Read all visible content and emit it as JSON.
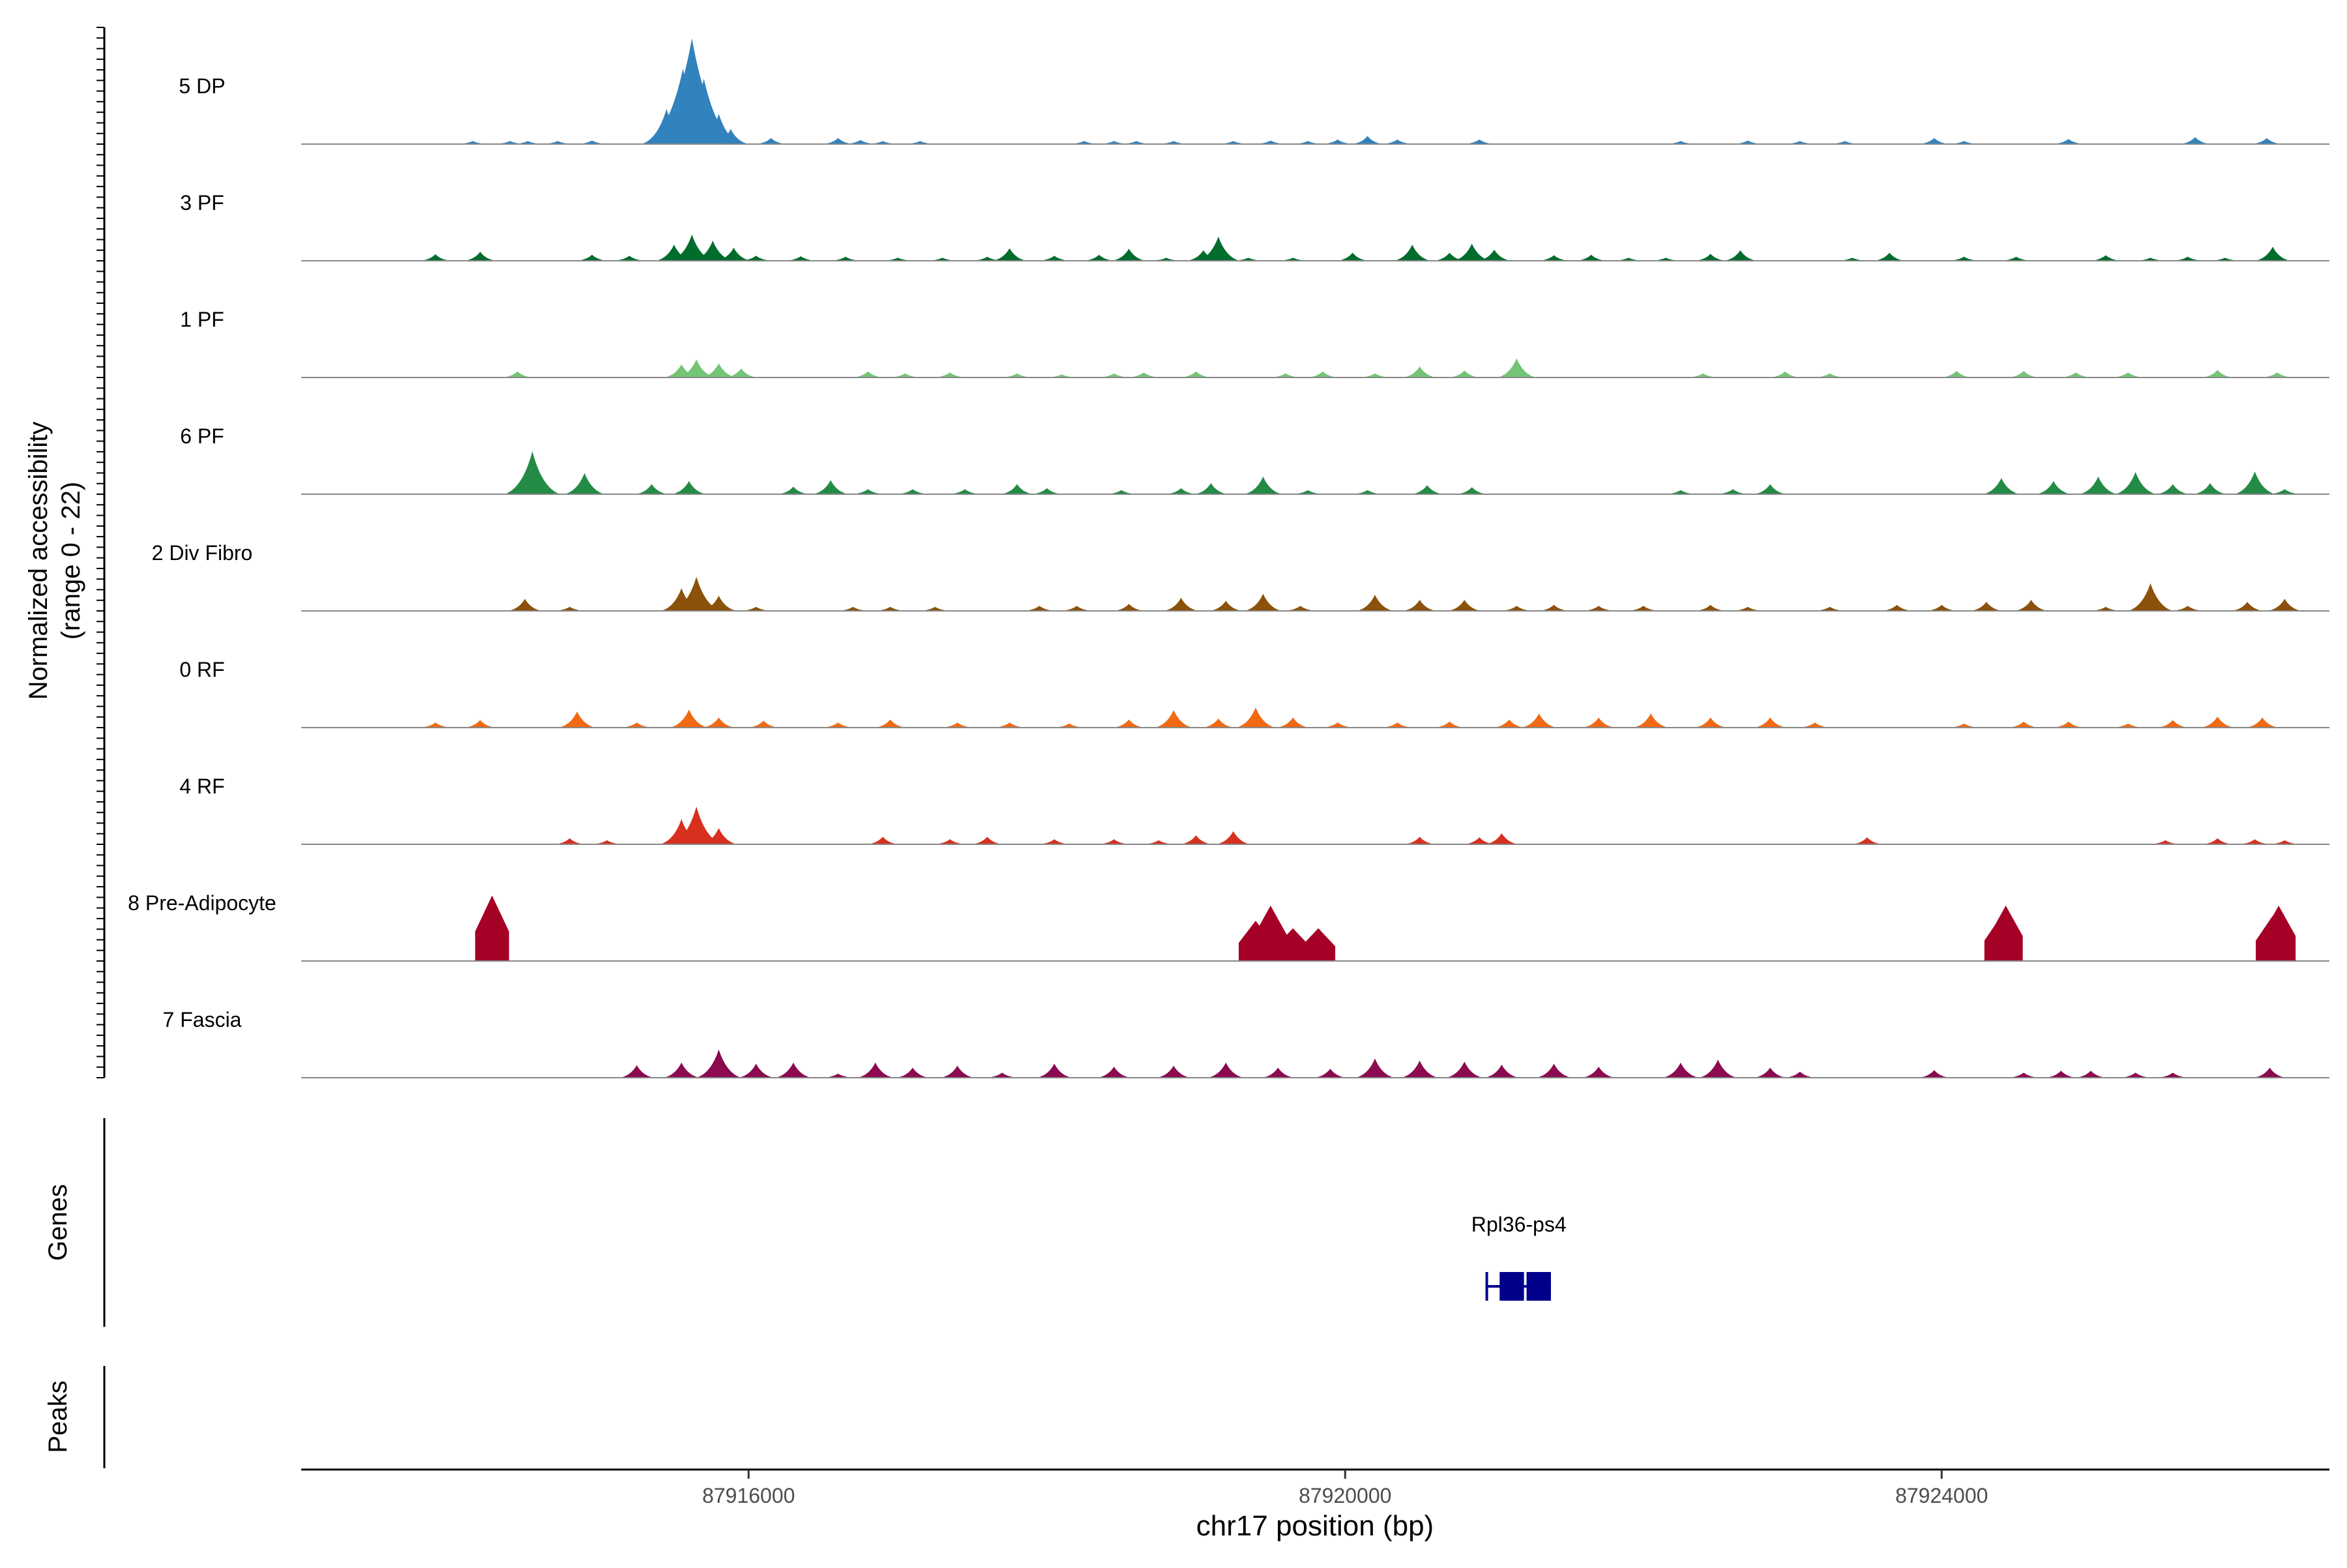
{
  "chart_data": {
    "type": "area",
    "title": "",
    "ylabel": "Normalized accessibility",
    "ylabel_range": "(range 0 - 22)",
    "xlabel": "chr17 position (bp)",
    "x_range": [
      87913000,
      87926600
    ],
    "ylim": [
      0,
      22
    ],
    "x_ticks": [
      {
        "value": 87916000,
        "label": "87916000"
      },
      {
        "value": 87920000,
        "label": "87920000"
      },
      {
        "value": 87924000,
        "label": "87924000"
      }
    ],
    "series": [
      {
        "name": "5 DP",
        "color": "#3182bd",
        "peaks": [
          [
            87914150,
            0.6
          ],
          [
            87914400,
            0.6
          ],
          [
            87914520,
            0.6
          ],
          [
            87914720,
            0.6
          ],
          [
            87914950,
            0.7
          ],
          [
            87915450,
            7
          ],
          [
            87915560,
            15
          ],
          [
            87915620,
            21
          ],
          [
            87915700,
            13
          ],
          [
            87915800,
            6
          ],
          [
            87915880,
            3
          ],
          [
            87916150,
            1.2
          ],
          [
            87916600,
            1.2
          ],
          [
            87916750,
            0.8
          ],
          [
            87916900,
            0.6
          ],
          [
            87917150,
            0.6
          ],
          [
            87918250,
            0.6
          ],
          [
            87918450,
            0.6
          ],
          [
            87918600,
            0.6
          ],
          [
            87918850,
            0.6
          ],
          [
            87919250,
            0.6
          ],
          [
            87919500,
            0.7
          ],
          [
            87919750,
            0.6
          ],
          [
            87919950,
            0.9
          ],
          [
            87920150,
            1.6
          ],
          [
            87920350,
            0.9
          ],
          [
            87920900,
            0.9
          ],
          [
            87922250,
            0.6
          ],
          [
            87922700,
            0.7
          ],
          [
            87923050,
            0.6
          ],
          [
            87923350,
            0.6
          ],
          [
            87923950,
            1.2
          ],
          [
            87924150,
            0.6
          ],
          [
            87924850,
            1
          ],
          [
            87925700,
            1.4
          ],
          [
            87926180,
            1.2
          ]
        ]
      },
      {
        "name": "3 PF",
        "color": "#006d2c",
        "peaks": [
          [
            87913900,
            1.3
          ],
          [
            87914200,
            1.8
          ],
          [
            87914950,
            1.2
          ],
          [
            87915200,
            1
          ],
          [
            87915500,
            3.2
          ],
          [
            87915620,
            5.2
          ],
          [
            87915760,
            4
          ],
          [
            87915900,
            2.6
          ],
          [
            87916050,
            1
          ],
          [
            87916350,
            0.9
          ],
          [
            87916650,
            0.8
          ],
          [
            87917000,
            0.6
          ],
          [
            87917300,
            0.6
          ],
          [
            87917600,
            0.8
          ],
          [
            87917750,
            2.5
          ],
          [
            87918050,
            1
          ],
          [
            87918350,
            1.2
          ],
          [
            87918550,
            2.4
          ],
          [
            87918800,
            0.6
          ],
          [
            87919050,
            2.1
          ],
          [
            87919150,
            4.8
          ],
          [
            87919350,
            0.6
          ],
          [
            87919650,
            0.6
          ],
          [
            87920050,
            1.6
          ],
          [
            87920450,
            3.2
          ],
          [
            87920700,
            1.6
          ],
          [
            87920850,
            3.4
          ],
          [
            87921000,
            2.2
          ],
          [
            87921400,
            1.1
          ],
          [
            87921650,
            1.2
          ],
          [
            87921900,
            0.6
          ],
          [
            87922150,
            0.6
          ],
          [
            87922450,
            1.4
          ],
          [
            87922650,
            2.1
          ],
          [
            87923400,
            0.6
          ],
          [
            87923650,
            1.6
          ],
          [
            87924150,
            0.8
          ],
          [
            87924500,
            0.8
          ],
          [
            87925100,
            1.1
          ],
          [
            87925400,
            0.6
          ],
          [
            87925650,
            0.8
          ],
          [
            87925900,
            0.6
          ],
          [
            87926220,
            2.8
          ]
        ]
      },
      {
        "name": "1 PF",
        "color": "#74c476",
        "peaks": [
          [
            87914450,
            1.2
          ],
          [
            87915550,
            2.6
          ],
          [
            87915650,
            3.6
          ],
          [
            87915800,
            2.8
          ],
          [
            87915950,
            1.8
          ],
          [
            87916800,
            1.2
          ],
          [
            87917050,
            0.8
          ],
          [
            87917350,
            1
          ],
          [
            87917800,
            0.8
          ],
          [
            87918100,
            0.6
          ],
          [
            87918450,
            0.8
          ],
          [
            87918650,
            1
          ],
          [
            87919000,
            1.2
          ],
          [
            87919600,
            0.8
          ],
          [
            87919850,
            1.2
          ],
          [
            87920200,
            0.8
          ],
          [
            87920500,
            2.2
          ],
          [
            87920800,
            1.4
          ],
          [
            87921150,
            3.8
          ],
          [
            87922400,
            0.8
          ],
          [
            87922950,
            1.2
          ],
          [
            87923250,
            0.8
          ],
          [
            87924100,
            1.3
          ],
          [
            87924550,
            1.3
          ],
          [
            87924900,
            1
          ],
          [
            87925250,
            1
          ],
          [
            87925850,
            1.5
          ],
          [
            87926250,
            1
          ]
        ]
      },
      {
        "name": "6 PF",
        "color": "#238b45",
        "peaks": [
          [
            87914550,
            8.5
          ],
          [
            87914900,
            4.2
          ],
          [
            87915350,
            2
          ],
          [
            87915600,
            2.6
          ],
          [
            87916300,
            1.5
          ],
          [
            87916550,
            2.8
          ],
          [
            87916800,
            1
          ],
          [
            87917100,
            1
          ],
          [
            87917450,
            1
          ],
          [
            87917800,
            2
          ],
          [
            87918000,
            1.2
          ],
          [
            87918500,
            0.8
          ],
          [
            87918900,
            1.2
          ],
          [
            87919100,
            2.2
          ],
          [
            87919450,
            3.5
          ],
          [
            87919750,
            0.8
          ],
          [
            87920150,
            0.8
          ],
          [
            87920550,
            1.8
          ],
          [
            87920850,
            1.4
          ],
          [
            87922250,
            0.8
          ],
          [
            87922600,
            1
          ],
          [
            87922850,
            2
          ],
          [
            87924400,
            3.2
          ],
          [
            87924750,
            2.6
          ],
          [
            87925050,
            3.5
          ],
          [
            87925300,
            4.4
          ],
          [
            87925550,
            2
          ],
          [
            87925800,
            2.2
          ],
          [
            87926100,
            4.5
          ],
          [
            87926300,
            1
          ]
        ]
      },
      {
        "name": "2 Div Fibro",
        "color": "#8c510a",
        "peaks": [
          [
            87914500,
            2.4
          ],
          [
            87914800,
            0.8
          ],
          [
            87915550,
            4.5
          ],
          [
            87915650,
            6.8
          ],
          [
            87915800,
            3
          ],
          [
            87916050,
            0.8
          ],
          [
            87916700,
            0.8
          ],
          [
            87916950,
            0.8
          ],
          [
            87917250,
            0.8
          ],
          [
            87917950,
            1
          ],
          [
            87918200,
            1
          ],
          [
            87918550,
            1.4
          ],
          [
            87918900,
            2.6
          ],
          [
            87919200,
            2
          ],
          [
            87919450,
            3.4
          ],
          [
            87919700,
            1
          ],
          [
            87920200,
            3.2
          ],
          [
            87920500,
            2.2
          ],
          [
            87920800,
            2.2
          ],
          [
            87921150,
            1
          ],
          [
            87921400,
            1.2
          ],
          [
            87921700,
            1
          ],
          [
            87922000,
            1
          ],
          [
            87922450,
            1.2
          ],
          [
            87922700,
            0.8
          ],
          [
            87923250,
            0.8
          ],
          [
            87923700,
            1.2
          ],
          [
            87924000,
            1.2
          ],
          [
            87924300,
            1.8
          ],
          [
            87924600,
            2.2
          ],
          [
            87925100,
            0.8
          ],
          [
            87925400,
            5.5
          ],
          [
            87925650,
            1
          ],
          [
            87926050,
            1.8
          ],
          [
            87926300,
            2.4
          ]
        ]
      },
      {
        "name": "0 RF",
        "color": "#f16913",
        "peaks": [
          [
            87913900,
            1
          ],
          [
            87914200,
            1.5
          ],
          [
            87914850,
            3.2
          ],
          [
            87915250,
            1
          ],
          [
            87915600,
            3.6
          ],
          [
            87915800,
            2
          ],
          [
            87916100,
            1.4
          ],
          [
            87916600,
            1
          ],
          [
            87916950,
            1.6
          ],
          [
            87917400,
            1
          ],
          [
            87917750,
            1
          ],
          [
            87918150,
            0.8
          ],
          [
            87918550,
            1.6
          ],
          [
            87918850,
            3.5
          ],
          [
            87919150,
            1.8
          ],
          [
            87919400,
            4
          ],
          [
            87919650,
            2
          ],
          [
            87919950,
            1
          ],
          [
            87920350,
            1
          ],
          [
            87920700,
            1.2
          ],
          [
            87921100,
            1.6
          ],
          [
            87921300,
            2.8
          ],
          [
            87921700,
            2
          ],
          [
            87922050,
            2.8
          ],
          [
            87922450,
            2
          ],
          [
            87922850,
            2
          ],
          [
            87923150,
            1
          ],
          [
            87924150,
            0.8
          ],
          [
            87924550,
            1.2
          ],
          [
            87924850,
            1.2
          ],
          [
            87925250,
            0.8
          ],
          [
            87925550,
            1.5
          ],
          [
            87925850,
            2.2
          ],
          [
            87926150,
            2
          ]
        ]
      },
      {
        "name": "4 RF",
        "color": "#d7301f",
        "peaks": [
          [
            87914800,
            1.2
          ],
          [
            87915050,
            0.8
          ],
          [
            87915550,
            5
          ],
          [
            87915650,
            7.5
          ],
          [
            87915800,
            3.2
          ],
          [
            87916900,
            1.5
          ],
          [
            87917350,
            1
          ],
          [
            87917600,
            1.5
          ],
          [
            87918050,
            1
          ],
          [
            87918450,
            1
          ],
          [
            87918750,
            0.8
          ],
          [
            87919000,
            1.8
          ],
          [
            87919250,
            2.6
          ],
          [
            87920500,
            1.5
          ],
          [
            87920900,
            1.4
          ],
          [
            87921050,
            2.2
          ],
          [
            87923500,
            1.4
          ],
          [
            87925500,
            0.8
          ],
          [
            87925850,
            1.2
          ],
          [
            87926100,
            1
          ],
          [
            87926300,
            0.8
          ]
        ]
      },
      {
        "name": "8 Pre-Adipocyte",
        "color": "#a50026",
        "peaks": [
          [
            87914280,
            13
          ],
          [
            87919400,
            8
          ],
          [
            87919500,
            11
          ],
          [
            87919650,
            6.5
          ],
          [
            87919820,
            6.5
          ],
          [
            87924400,
            9
          ],
          [
            87924430,
            11
          ],
          [
            87926220,
            9
          ],
          [
            87926260,
            11
          ]
        ]
      },
      {
        "name": "7 Fascia",
        "color": "#8b0a50",
        "peaks": [
          [
            87915250,
            2.5
          ],
          [
            87915550,
            3
          ],
          [
            87915800,
            5.6
          ],
          [
            87916050,
            2.8
          ],
          [
            87916300,
            3
          ],
          [
            87916600,
            0.8
          ],
          [
            87916850,
            3
          ],
          [
            87917100,
            2
          ],
          [
            87917400,
            2.4
          ],
          [
            87917700,
            1
          ],
          [
            87918050,
            2.8
          ],
          [
            87918450,
            2.2
          ],
          [
            87918850,
            2.4
          ],
          [
            87919200,
            3
          ],
          [
            87919550,
            2
          ],
          [
            87919900,
            1.8
          ],
          [
            87920200,
            3.8
          ],
          [
            87920500,
            3.4
          ],
          [
            87920800,
            3.2
          ],
          [
            87921050,
            2.6
          ],
          [
            87921400,
            2.8
          ],
          [
            87921700,
            2.2
          ],
          [
            87922250,
            3
          ],
          [
            87922500,
            3.6
          ],
          [
            87922850,
            2
          ],
          [
            87923050,
            1.2
          ],
          [
            87923950,
            1.5
          ],
          [
            87924550,
            1
          ],
          [
            87924800,
            1.4
          ],
          [
            87925000,
            1.4
          ],
          [
            87925300,
            1
          ],
          [
            87925550,
            1
          ],
          [
            87926200,
            2
          ]
        ]
      }
    ],
    "genes_label": "Genes",
    "peaks_label": "Peaks",
    "gene": {
      "name": "Rpl36-ps4",
      "start": 87920950,
      "end": 87921380,
      "color": "#00008b"
    }
  }
}
